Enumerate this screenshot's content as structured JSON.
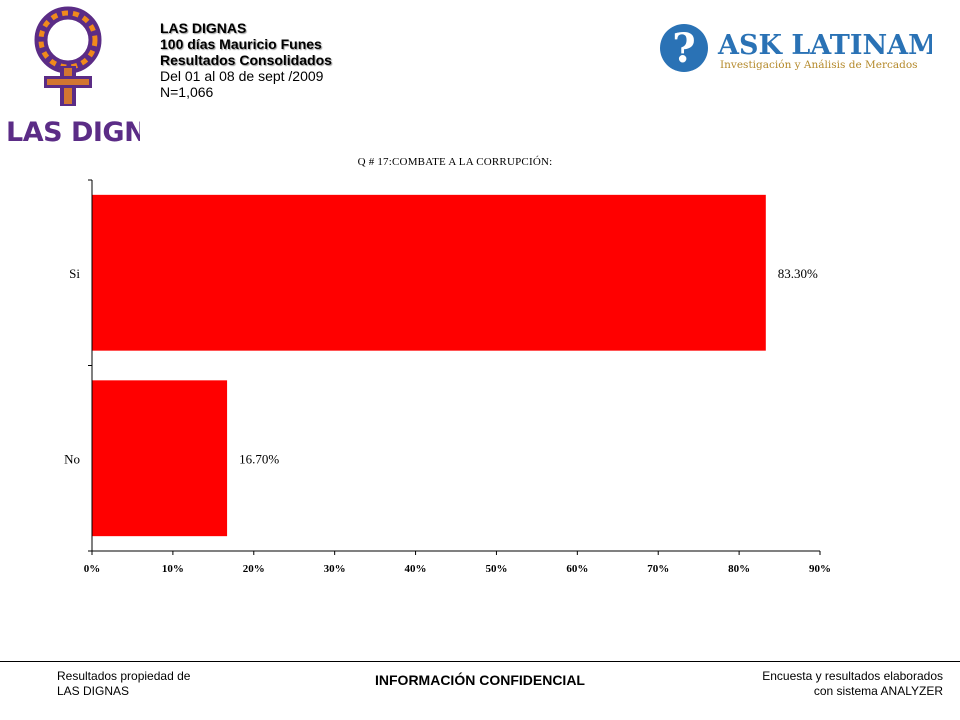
{
  "header": {
    "line1": "LAS DIGNAS",
    "line2": "100 días Mauricio Funes",
    "line3": "Resultados Consolidados",
    "line4": "Del 01 al 08 de sept /2009",
    "line5": "N=1,066"
  },
  "logos": {
    "left_text": "LAS DIGNAS",
    "right_text_main": "ASK LATINAMERICA",
    "right_text_sub": "Investigación y Análisis de Mercados"
  },
  "colors": {
    "bar": "#ff0000",
    "brand_purple": "#5b2c86",
    "brand_orange": "#f08a1c",
    "ask_blue": "#2a72b5",
    "ask_gold": "#b4892a"
  },
  "chart_data": {
    "type": "bar",
    "orientation": "horizontal",
    "title": "Q # 17:COMBATE A LA CORRUPCIÓN:",
    "categories": [
      "Si",
      "No"
    ],
    "values": [
      83.3,
      16.7
    ],
    "value_labels": [
      "83.30%",
      "16.70%"
    ],
    "xlim": [
      0,
      90
    ],
    "xticks": [
      "0%",
      "10%",
      "20%",
      "30%",
      "40%",
      "50%",
      "60%",
      "70%",
      "80%",
      "90%"
    ],
    "grid": false,
    "legend": "none"
  },
  "footer": {
    "left_line1": "Resultados propiedad de",
    "left_line2": "LAS DIGNAS",
    "center": "INFORMACIÓN CONFIDENCIAL",
    "right_line1": "Encuesta y resultados elaborados",
    "right_line2": "con sistema ANALYZER"
  }
}
